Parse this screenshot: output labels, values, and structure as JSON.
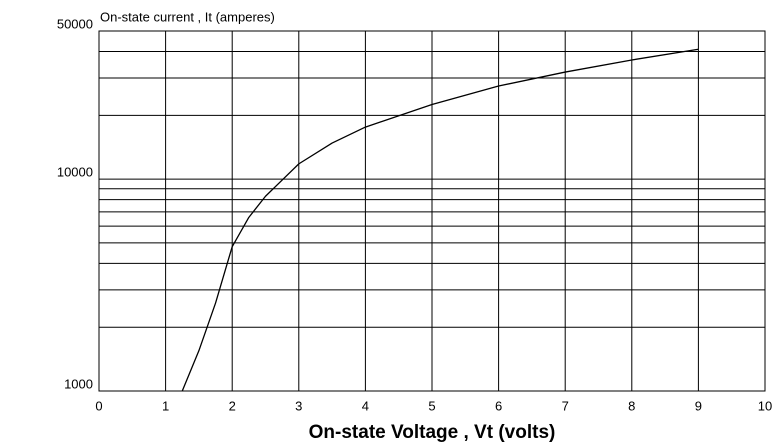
{
  "chart_data": {
    "type": "line",
    "log_y": true,
    "grid": true,
    "title": "On-state current , It (amperes)",
    "x_label": "On-state Voltage , Vt (volts)",
    "x": [
      1.25,
      1.5,
      1.75,
      2,
      2.25,
      2.5,
      2.75,
      3,
      3.5,
      4,
      5,
      6,
      7,
      8,
      9
    ],
    "series": [
      {
        "name": "It",
        "color": "#000000",
        "values": [
          1000,
          1550,
          2600,
          4800,
          6600,
          8300,
          9900,
          11800,
          14800,
          17600,
          22500,
          27500,
          32000,
          36500,
          41000
        ]
      }
    ],
    "xlim": [
      0,
      10
    ],
    "xticks": [
      0,
      1,
      2,
      3,
      4,
      5,
      6,
      7,
      8,
      9,
      10
    ],
    "ylim": [
      1000,
      50000
    ],
    "yticks": [
      1000,
      10000,
      50000
    ],
    "minor_yticks": [
      2000,
      3000,
      4000,
      5000,
      6000,
      7000,
      8000,
      9000,
      20000,
      30000,
      40000
    ]
  }
}
